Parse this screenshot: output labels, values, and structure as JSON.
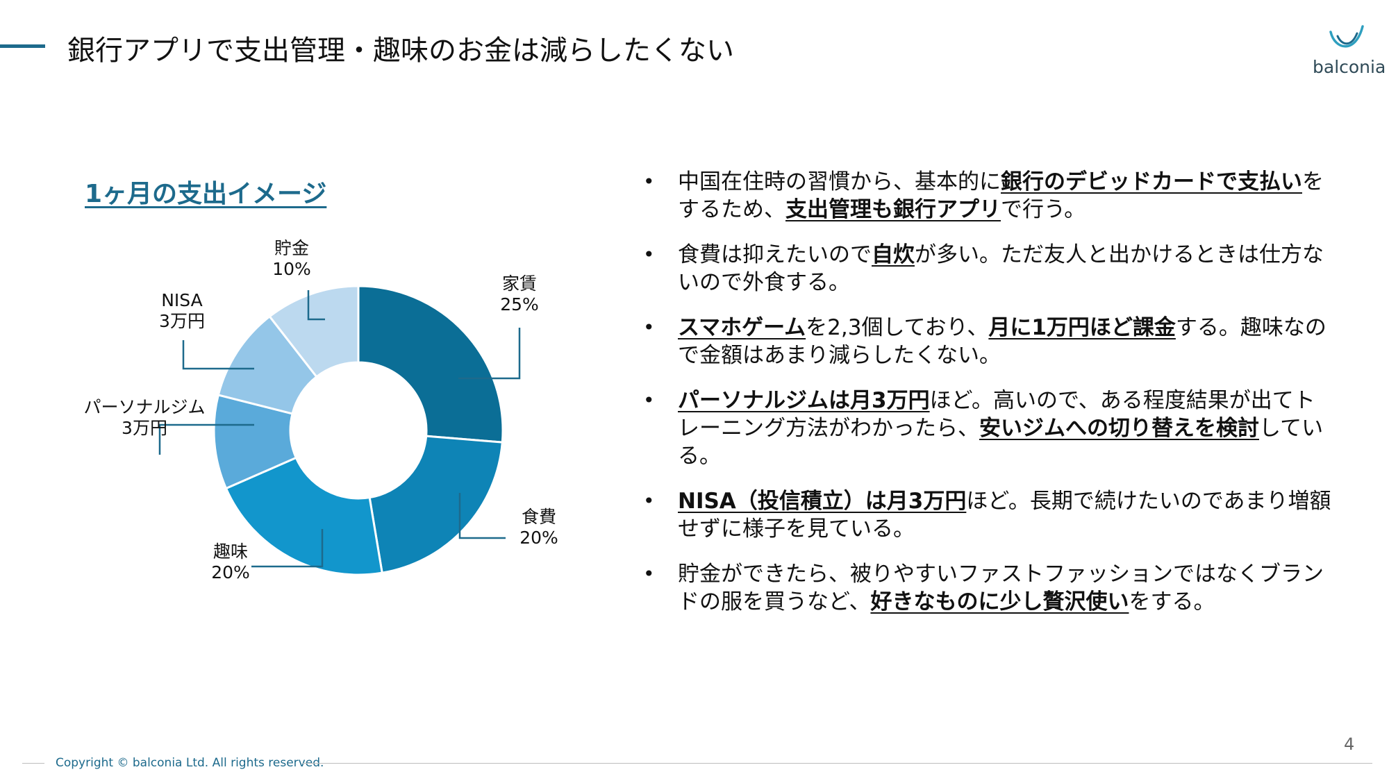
{
  "header": {
    "title": "銀行アプリで支出管理・趣味のお金は減らしたくない",
    "logo_text": "balconia"
  },
  "chart_heading": "1ヶ月の支出イメージ",
  "chart_data": {
    "type": "pie",
    "variant": "donut",
    "slices": [
      {
        "name": "家賃",
        "value_label": "25%",
        "value": 25,
        "color": "#0b6e96"
      },
      {
        "name": "食費",
        "value_label": "20%",
        "value": 20,
        "color": "#0e84b6"
      },
      {
        "name": "趣味",
        "value_label": "20%",
        "value": 20,
        "color": "#1296cc"
      },
      {
        "name": "パーソナルジム",
        "value_label": "3万円",
        "value": 10,
        "color": "#5aaada"
      },
      {
        "name": "NISA",
        "value_label": "3万円",
        "value": 10,
        "color": "#94c6e8"
      },
      {
        "name": "貯金",
        "value_label": "10%",
        "value": 10,
        "color": "#bcd9ef"
      }
    ]
  },
  "bullets": [
    [
      {
        "t": "中国在住時の習慣から、基本的に"
      },
      {
        "t": "銀行のデビッドカードで支払い",
        "hl": true
      },
      {
        "t": "をするため、"
      },
      {
        "t": "支出管理も銀行アプリ",
        "hl": true
      },
      {
        "t": "で行う。"
      }
    ],
    [
      {
        "t": "食費は抑えたいので"
      },
      {
        "t": "自炊",
        "hl": true
      },
      {
        "t": "が多い。ただ友人と出かけるときは仕方ないので外食する。"
      }
    ],
    [
      {
        "t": "スマホゲーム",
        "hl": true
      },
      {
        "t": "を2,3個しており、"
      },
      {
        "t": "月に1万円ほど課金",
        "hl": true
      },
      {
        "t": "する。趣味なので金額はあまり減らしたくない。"
      }
    ],
    [
      {
        "t": "パーソナルジムは月3万円",
        "hl": true
      },
      {
        "t": "ほど。高いので、ある程度結果が出てトレーニング方法がわかったら、"
      },
      {
        "t": "安いジムへの切り替えを検討",
        "hl": true
      },
      {
        "t": "している。"
      }
    ],
    [
      {
        "t": "NISA（投信積立）は月3万円",
        "hl": true
      },
      {
        "t": "ほど。長期で続けたいのであまり増額せずに様子を見ている。"
      }
    ],
    [
      {
        "t": "貯金ができたら、被りやすいファストファッションではなくブランドの服を買うなど、"
      },
      {
        "t": "好きなものに少し贅沢使い",
        "hl": true
      },
      {
        "t": "をする。"
      }
    ]
  ],
  "footer": {
    "copyright": "Copyright © balconia Ltd. All rights reserved.",
    "page_number": "4"
  }
}
